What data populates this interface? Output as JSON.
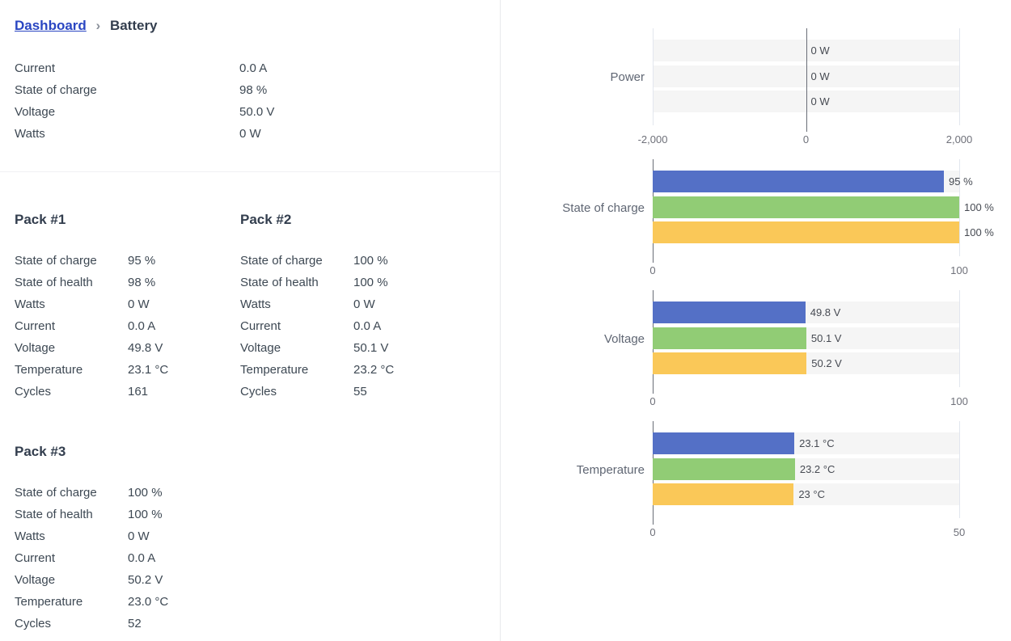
{
  "breadcrumb": {
    "link": "Dashboard",
    "separator": "›",
    "current": "Battery"
  },
  "summary": {
    "rows": [
      {
        "label": "Current",
        "value": "0.0 A"
      },
      {
        "label": "State of charge",
        "value": "98 %"
      },
      {
        "label": "Voltage",
        "value": "50.0 V"
      },
      {
        "label": "Watts",
        "value": "0 W"
      }
    ]
  },
  "packs": [
    {
      "title": "Pack #1",
      "rows": [
        {
          "label": "State of charge",
          "value": "95 %"
        },
        {
          "label": "State of health",
          "value": "98 %"
        },
        {
          "label": "Watts",
          "value": "0 W"
        },
        {
          "label": "Current",
          "value": "0.0 A"
        },
        {
          "label": "Voltage",
          "value": "49.8 V"
        },
        {
          "label": "Temperature",
          "value": "23.1 °C"
        },
        {
          "label": "Cycles",
          "value": "161"
        }
      ]
    },
    {
      "title": "Pack #2",
      "rows": [
        {
          "label": "State of charge",
          "value": "100 %"
        },
        {
          "label": "State of health",
          "value": "100 %"
        },
        {
          "label": "Watts",
          "value": "0 W"
        },
        {
          "label": "Current",
          "value": "0.0 A"
        },
        {
          "label": "Voltage",
          "value": "50.1 V"
        },
        {
          "label": "Temperature",
          "value": "23.2 °C"
        },
        {
          "label": "Cycles",
          "value": "55"
        }
      ]
    },
    {
      "title": "Pack #3",
      "rows": [
        {
          "label": "State of charge",
          "value": "100 %"
        },
        {
          "label": "State of health",
          "value": "100 %"
        },
        {
          "label": "Watts",
          "value": "0 W"
        },
        {
          "label": "Current",
          "value": "0.0 A"
        },
        {
          "label": "Voltage",
          "value": "50.2 V"
        },
        {
          "label": "Temperature",
          "value": "23.0 °C"
        },
        {
          "label": "Cycles",
          "value": "52"
        }
      ]
    }
  ],
  "colors": {
    "pack1_bar": "#5470c6",
    "pack2_bar": "#91cc75",
    "pack3_bar": "#fac858",
    "breadcrumb_link": "#2a46c2",
    "axis_line": "#696d77",
    "gridline": "#e2e6ee"
  },
  "chart_data": [
    {
      "type": "bar",
      "orientation": "horizontal",
      "category_label": "Power",
      "categories": [
        "Pack #1",
        "Pack #2",
        "Pack #3"
      ],
      "values": [
        0,
        0,
        0
      ],
      "value_labels": [
        "0 W",
        "0 W",
        "0 W"
      ],
      "xlim": [
        -2000,
        2000
      ],
      "ticks": [
        {
          "value": -2000,
          "label": "-2,000"
        },
        {
          "value": 0,
          "label": "0"
        },
        {
          "value": 2000,
          "label": "2,000"
        }
      ],
      "bar_colors": [
        "#5470c6",
        "#91cc75",
        "#fac858"
      ],
      "legend": false,
      "grid": "vertical-lines"
    },
    {
      "type": "bar",
      "orientation": "horizontal",
      "category_label": "State of charge",
      "categories": [
        "Pack #1",
        "Pack #2",
        "Pack #3"
      ],
      "values": [
        95,
        100,
        100
      ],
      "value_labels": [
        "95 %",
        "100 %",
        "100 %"
      ],
      "xlim": [
        0,
        100
      ],
      "ticks": [
        {
          "value": 0,
          "label": "0"
        },
        {
          "value": 100,
          "label": "100"
        }
      ],
      "bar_colors": [
        "#5470c6",
        "#91cc75",
        "#fac858"
      ],
      "legend": false,
      "grid": "vertical-lines"
    },
    {
      "type": "bar",
      "orientation": "horizontal",
      "category_label": "Voltage",
      "categories": [
        "Pack #1",
        "Pack #2",
        "Pack #3"
      ],
      "values": [
        49.8,
        50.1,
        50.2
      ],
      "value_labels": [
        "49.8 V",
        "50.1 V",
        "50.2 V"
      ],
      "xlim": [
        0,
        100
      ],
      "ticks": [
        {
          "value": 0,
          "label": "0"
        },
        {
          "value": 100,
          "label": "100"
        }
      ],
      "bar_colors": [
        "#5470c6",
        "#91cc75",
        "#fac858"
      ],
      "legend": false,
      "grid": "vertical-lines"
    },
    {
      "type": "bar",
      "orientation": "horizontal",
      "category_label": "Temperature",
      "categories": [
        "Pack #1",
        "Pack #2",
        "Pack #3"
      ],
      "values": [
        23.1,
        23.2,
        23
      ],
      "value_labels": [
        "23.1 °C",
        "23.2 °C",
        "23 °C"
      ],
      "xlim": [
        0,
        50
      ],
      "ticks": [
        {
          "value": 0,
          "label": "0"
        },
        {
          "value": 50,
          "label": "50"
        }
      ],
      "bar_colors": [
        "#5470c6",
        "#91cc75",
        "#fac858"
      ],
      "legend": false,
      "grid": "vertical-lines"
    }
  ]
}
